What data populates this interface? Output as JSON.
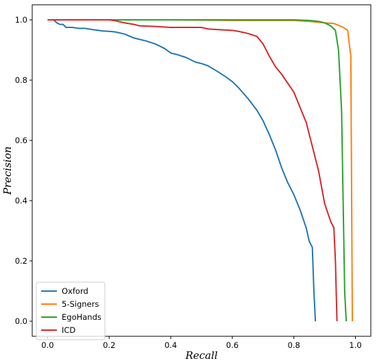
{
  "chart_data": {
    "type": "line",
    "xlabel": "Recall",
    "ylabel": "Precision",
    "xlim": [
      -0.05,
      1.05
    ],
    "ylim": [
      -0.05,
      1.05
    ],
    "xticks": [
      0.0,
      0.2,
      0.4,
      0.6,
      0.8,
      1.0
    ],
    "yticks": [
      0.0,
      0.2,
      0.4,
      0.6,
      0.8,
      1.0
    ],
    "tick_labels_x": [
      "0.0",
      "0.2",
      "0.4",
      "0.6",
      "0.8",
      "1.0"
    ],
    "tick_labels_y": [
      "0.0",
      "0.2",
      "0.4",
      "0.6",
      "0.8",
      "1.0"
    ],
    "grid": false,
    "legend_position": "lower-left",
    "series": [
      {
        "name": "Oxford",
        "color": "#1f77b4",
        "x": [
          0.0,
          0.02,
          0.03,
          0.04,
          0.05,
          0.06,
          0.08,
          0.1,
          0.12,
          0.15,
          0.18,
          0.2,
          0.22,
          0.25,
          0.28,
          0.3,
          0.32,
          0.35,
          0.38,
          0.4,
          0.42,
          0.45,
          0.48,
          0.5,
          0.52,
          0.55,
          0.58,
          0.6,
          0.62,
          0.65,
          0.68,
          0.7,
          0.72,
          0.74,
          0.76,
          0.78,
          0.8,
          0.82,
          0.84,
          0.85,
          0.86,
          0.865,
          0.87
        ],
        "y": [
          1.0,
          1.0,
          0.99,
          0.985,
          0.985,
          0.975,
          0.975,
          0.972,
          0.972,
          0.967,
          0.963,
          0.962,
          0.96,
          0.953,
          0.94,
          0.935,
          0.93,
          0.92,
          0.905,
          0.89,
          0.885,
          0.875,
          0.86,
          0.855,
          0.848,
          0.83,
          0.81,
          0.795,
          0.775,
          0.74,
          0.7,
          0.665,
          0.62,
          0.57,
          0.51,
          0.46,
          0.42,
          0.37,
          0.31,
          0.265,
          0.245,
          0.1,
          0.0
        ]
      },
      {
        "name": "5-Signers",
        "color": "#ff7f0e",
        "x": [
          0.0,
          0.2,
          0.4,
          0.6,
          0.8,
          0.85,
          0.9,
          0.93,
          0.95,
          0.96,
          0.975,
          0.98,
          0.985,
          0.99
        ],
        "y": [
          1.0,
          1.0,
          1.0,
          0.998,
          0.998,
          0.995,
          0.99,
          0.988,
          0.98,
          0.975,
          0.965,
          0.92,
          0.88,
          0.0
        ]
      },
      {
        "name": "EgoHands",
        "color": "#2ca02c",
        "x": [
          0.0,
          0.2,
          0.4,
          0.6,
          0.8,
          0.85,
          0.88,
          0.9,
          0.92,
          0.935,
          0.945,
          0.955,
          0.96,
          0.965,
          0.97
        ],
        "y": [
          1.0,
          1.0,
          1.0,
          1.0,
          1.0,
          0.998,
          0.995,
          0.99,
          0.98,
          0.965,
          0.9,
          0.7,
          0.4,
          0.1,
          0.0
        ]
      },
      {
        "name": "ICD",
        "color": "#d62728",
        "x": [
          0.0,
          0.1,
          0.2,
          0.22,
          0.25,
          0.28,
          0.3,
          0.35,
          0.4,
          0.45,
          0.5,
          0.52,
          0.55,
          0.6,
          0.62,
          0.65,
          0.68,
          0.7,
          0.72,
          0.74,
          0.76,
          0.78,
          0.8,
          0.82,
          0.84,
          0.86,
          0.88,
          0.9,
          0.92,
          0.93,
          0.935,
          0.94
        ],
        "y": [
          1.0,
          1.0,
          1.0,
          0.997,
          0.99,
          0.985,
          0.98,
          0.978,
          0.975,
          0.975,
          0.975,
          0.97,
          0.968,
          0.965,
          0.962,
          0.955,
          0.945,
          0.92,
          0.88,
          0.845,
          0.82,
          0.79,
          0.76,
          0.71,
          0.66,
          0.58,
          0.5,
          0.39,
          0.33,
          0.31,
          0.2,
          0.0
        ]
      }
    ]
  }
}
